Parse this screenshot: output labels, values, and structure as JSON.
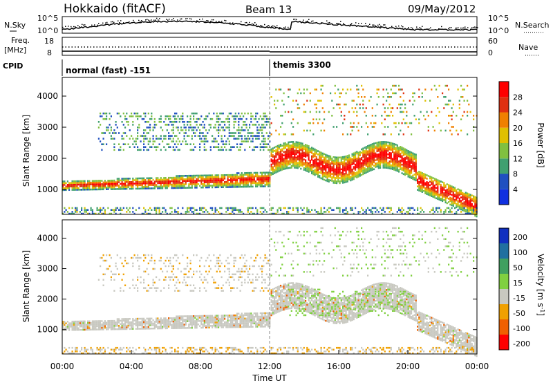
{
  "header": {
    "site": "Hokkaido (fitACF)",
    "beam": "Beam 13",
    "date": "09/May/2012"
  },
  "noise_panel": {
    "left_label": "N.Sky",
    "right_label": "N.Search",
    "ticks": [
      "10^5",
      "10^0"
    ]
  },
  "freq_panel": {
    "left_label_1": "Freq.",
    "left_label_2": "[MHz]",
    "left_ticks": [
      "18",
      "8"
    ],
    "right_label": "Nave",
    "right_ticks": [
      "60",
      "0"
    ]
  },
  "cpid": {
    "label": "CPID",
    "segments": [
      "normal (fast) -151",
      "themis 3300"
    ]
  },
  "chart_data": [
    {
      "type": "heatmap",
      "name": "power",
      "ylabel": "Slant Range [km]",
      "xlabel": "",
      "y_ticks": [
        1000,
        2000,
        3000,
        4000
      ],
      "ylim": [
        200,
        4600
      ],
      "colorbar": {
        "label": "Power [dB]",
        "ticks": [
          "4",
          "8",
          "12",
          "16",
          "20",
          "24",
          "28"
        ],
        "colors": [
          "#1030e0",
          "#2050c0",
          "#40a070",
          "#80c040",
          "#e0c000",
          "#f08000",
          "#e03010",
          "#ff0000"
        ]
      }
    },
    {
      "type": "heatmap",
      "name": "velocity",
      "ylabel": "Slant Range [km]",
      "xlabel": "Time UT",
      "x_ticks": [
        "00:00",
        "04:00",
        "08:00",
        "12:00",
        "16:00",
        "20:00",
        "00:00"
      ],
      "y_ticks": [
        1000,
        2000,
        3000,
        4000
      ],
      "ylim": [
        200,
        4600
      ],
      "colorbar": {
        "label": "Velocity [m s^-1]",
        "ticks": [
          "200",
          "100",
          "50",
          "15",
          "-15",
          "-50",
          "-100",
          "-200"
        ],
        "colors": [
          "#1030c0",
          "#2070a0",
          "#40a060",
          "#80d040",
          "#c8c8c0",
          "#f0a000",
          "#f06000",
          "#ff0000"
        ]
      }
    }
  ]
}
